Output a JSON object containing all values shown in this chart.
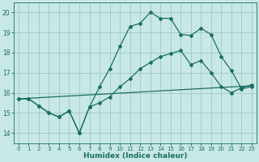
{
  "xlabel": "Humidex (Indice chaleur)",
  "bg_color": "#c8e8e5",
  "grid_color": "#9dc8c5",
  "line_color": "#1a6e65",
  "xlim": [
    -0.5,
    23.5
  ],
  "ylim": [
    13.5,
    20.5
  ],
  "xticks": [
    0,
    1,
    2,
    3,
    4,
    5,
    6,
    7,
    8,
    9,
    10,
    11,
    12,
    13,
    14,
    15,
    16,
    17,
    18,
    19,
    20,
    21,
    22,
    23
  ],
  "yticks": [
    14,
    15,
    16,
    17,
    18,
    19,
    20
  ],
  "line1_x": [
    0,
    1,
    2,
    3,
    4,
    5,
    6,
    7,
    8,
    9,
    10,
    11,
    12,
    13,
    14,
    15,
    16,
    17,
    18,
    19,
    20,
    21,
    22,
    23
  ],
  "line1_y": [
    15.7,
    15.7,
    15.35,
    15.0,
    14.8,
    15.1,
    14.0,
    15.3,
    16.3,
    17.2,
    18.3,
    19.3,
    19.45,
    20.0,
    19.7,
    19.7,
    18.9,
    18.85,
    19.2,
    18.9,
    17.8,
    17.1,
    16.2,
    16.3
  ],
  "line2_x": [
    0,
    1,
    2,
    3,
    4,
    5,
    6,
    7,
    8,
    9,
    10,
    11,
    12,
    13,
    14,
    15,
    16,
    17,
    18,
    19,
    20,
    21,
    22,
    23
  ],
  "line2_y": [
    15.7,
    15.7,
    15.35,
    15.0,
    14.8,
    15.1,
    14.0,
    15.3,
    15.5,
    15.8,
    16.3,
    16.7,
    17.2,
    17.5,
    17.8,
    17.95,
    18.1,
    17.4,
    17.6,
    17.0,
    16.3,
    16.0,
    16.25,
    16.4
  ],
  "line3_x": [
    0,
    23
  ],
  "line3_y": [
    15.7,
    16.35
  ]
}
